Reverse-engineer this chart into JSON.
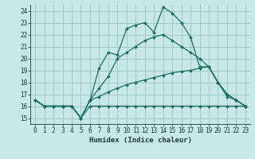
{
  "title": "",
  "xlabel": "Humidex (Indice chaleur)",
  "ylabel": "",
  "background_color": "#c8e8e8",
  "grid_color": "#a0c8c8",
  "line_color": "#1a7060",
  "xlim": [
    -0.5,
    23.5
  ],
  "ylim": [
    14.5,
    24.5
  ],
  "xticks": [
    0,
    1,
    2,
    3,
    4,
    5,
    6,
    7,
    8,
    9,
    10,
    11,
    12,
    13,
    14,
    15,
    16,
    17,
    18,
    19,
    20,
    21,
    22,
    23
  ],
  "yticks": [
    15,
    16,
    17,
    18,
    19,
    20,
    21,
    22,
    23,
    24
  ],
  "line1_x": [
    0,
    1,
    2,
    3,
    4,
    5,
    6,
    7,
    8,
    9,
    10,
    11,
    12,
    13,
    14,
    15,
    16,
    17,
    18,
    19,
    20,
    21,
    22,
    23
  ],
  "line1_y": [
    16.5,
    16.0,
    16.0,
    16.0,
    16.0,
    15.0,
    16.0,
    16.0,
    16.0,
    16.0,
    16.0,
    16.0,
    16.0,
    16.0,
    16.0,
    16.0,
    16.0,
    16.0,
    16.0,
    16.0,
    16.0,
    16.0,
    16.0,
    16.0
  ],
  "line2_x": [
    0,
    1,
    2,
    3,
    4,
    5,
    6,
    7,
    8,
    9,
    10,
    11,
    12,
    13,
    14,
    15,
    16,
    17,
    18,
    19,
    20,
    21,
    22,
    23
  ],
  "line2_y": [
    16.5,
    16.0,
    16.0,
    16.0,
    16.0,
    15.0,
    16.5,
    16.8,
    17.2,
    17.5,
    17.8,
    18.0,
    18.2,
    18.4,
    18.6,
    18.8,
    18.9,
    19.0,
    19.2,
    19.3,
    18.0,
    17.0,
    16.5,
    16.0
  ],
  "line3_x": [
    0,
    1,
    2,
    3,
    4,
    5,
    6,
    7,
    8,
    9,
    10,
    11,
    12,
    13,
    14,
    15,
    16,
    17,
    18,
    19,
    20,
    21,
    22,
    23
  ],
  "line3_y": [
    16.5,
    16.0,
    16.0,
    16.0,
    16.0,
    15.0,
    16.5,
    17.5,
    18.5,
    20.0,
    20.5,
    21.0,
    21.5,
    21.8,
    22.0,
    21.5,
    21.0,
    20.5,
    20.0,
    19.3,
    18.0,
    17.0,
    16.5,
    16.0
  ],
  "line4_x": [
    0,
    1,
    2,
    3,
    4,
    5,
    6,
    7,
    8,
    9,
    10,
    11,
    12,
    13,
    14,
    15,
    16,
    17,
    18,
    19,
    20,
    21,
    22,
    23
  ],
  "line4_y": [
    16.5,
    16.0,
    16.0,
    16.0,
    16.0,
    15.0,
    16.5,
    19.2,
    20.5,
    20.3,
    22.5,
    22.8,
    23.0,
    22.2,
    24.3,
    23.8,
    23.0,
    21.8,
    19.3,
    19.3,
    18.0,
    16.8,
    16.5,
    16.0
  ]
}
